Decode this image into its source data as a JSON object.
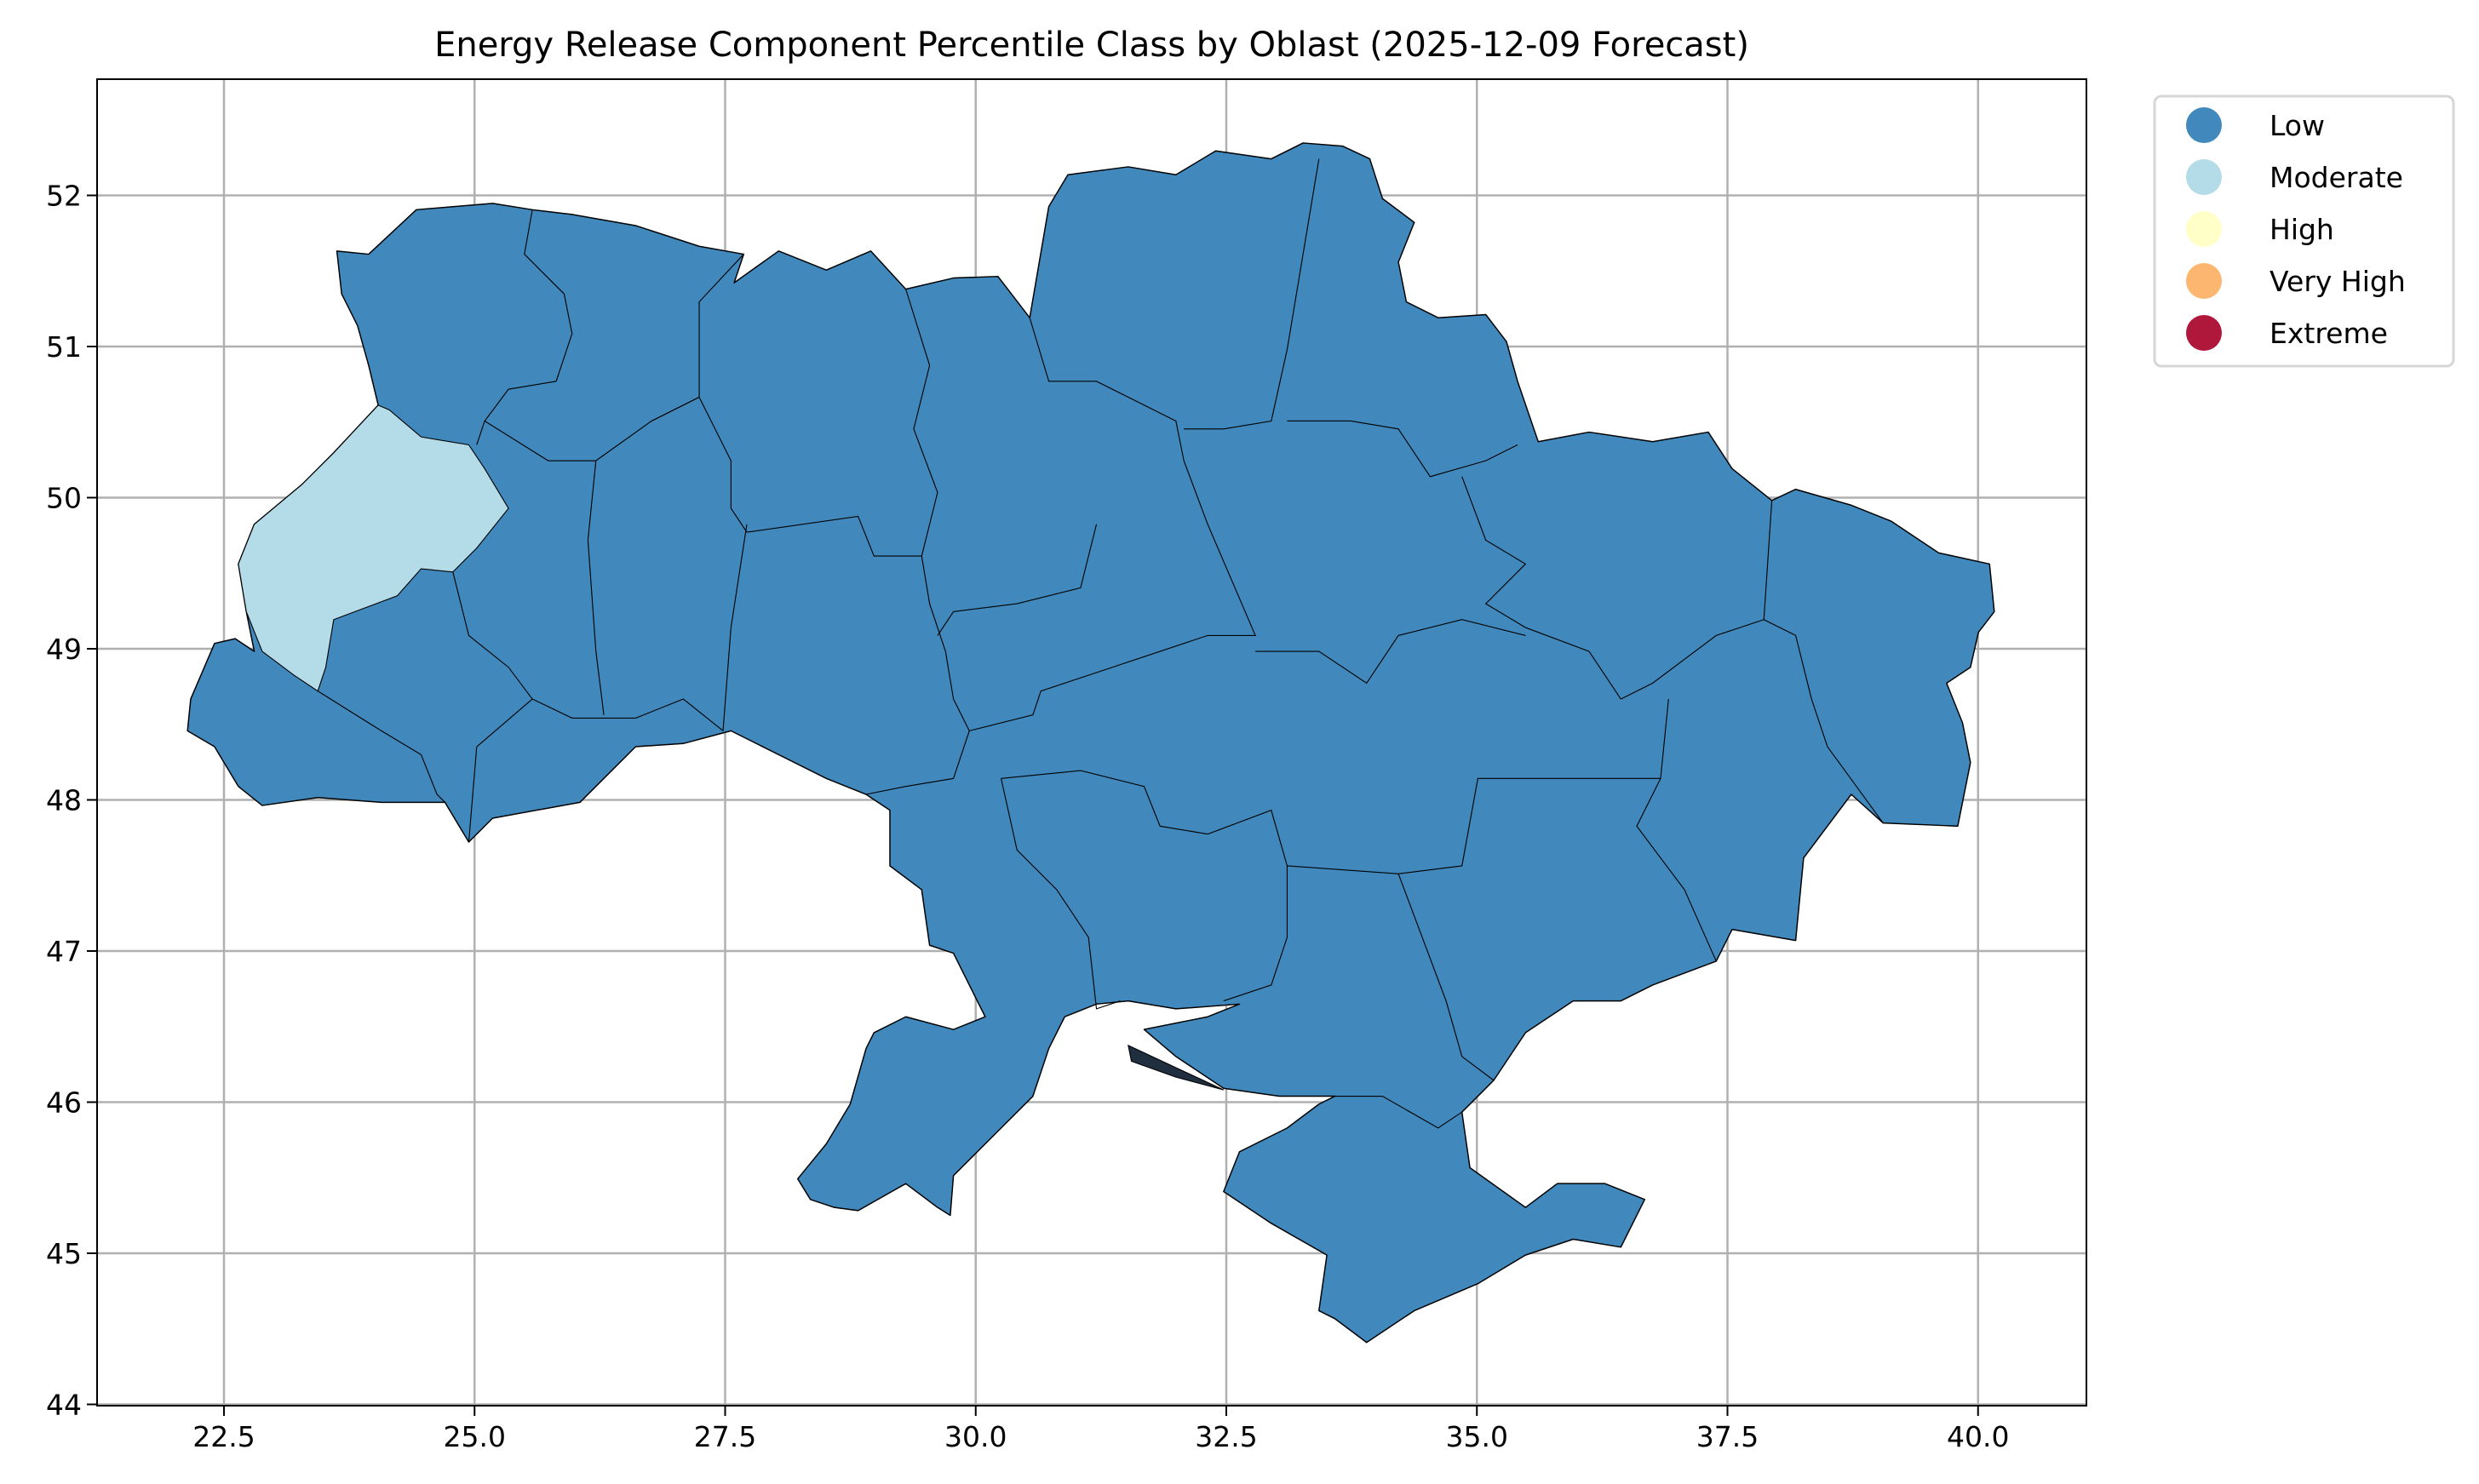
{
  "chart_data": {
    "type": "choropleth-map",
    "title": "Energy Release Component Percentile Class by Oblast (2025-12-09 Forecast)",
    "xlabel": "",
    "ylabel": "",
    "xlim": [
      21.23,
      41.08
    ],
    "ylim": [
      43.99,
      52.77
    ],
    "xticks": [
      "22.5",
      "25.0",
      "27.5",
      "30.0",
      "32.5",
      "35.0",
      "37.5",
      "40.0"
    ],
    "yticks": [
      "44",
      "45",
      "46",
      "47",
      "48",
      "49",
      "50",
      "51",
      "52"
    ],
    "grid": true,
    "legend_position": "outside-top-right",
    "legend": [
      {
        "label": "Low",
        "color": "#4189bd"
      },
      {
        "label": "Moderate",
        "color": "#b3dbe8"
      },
      {
        "label": "High",
        "color": "#ffffc7"
      },
      {
        "label": "Very High",
        "color": "#fdb66f"
      },
      {
        "label": "Extreme",
        "color": "#b0183b"
      }
    ],
    "classes_shown": {
      "Low": "all oblasts except one in the far west",
      "Moderate": "one western oblast"
    },
    "border_color": "#000000",
    "grid_color": "#b0b0b0"
  }
}
